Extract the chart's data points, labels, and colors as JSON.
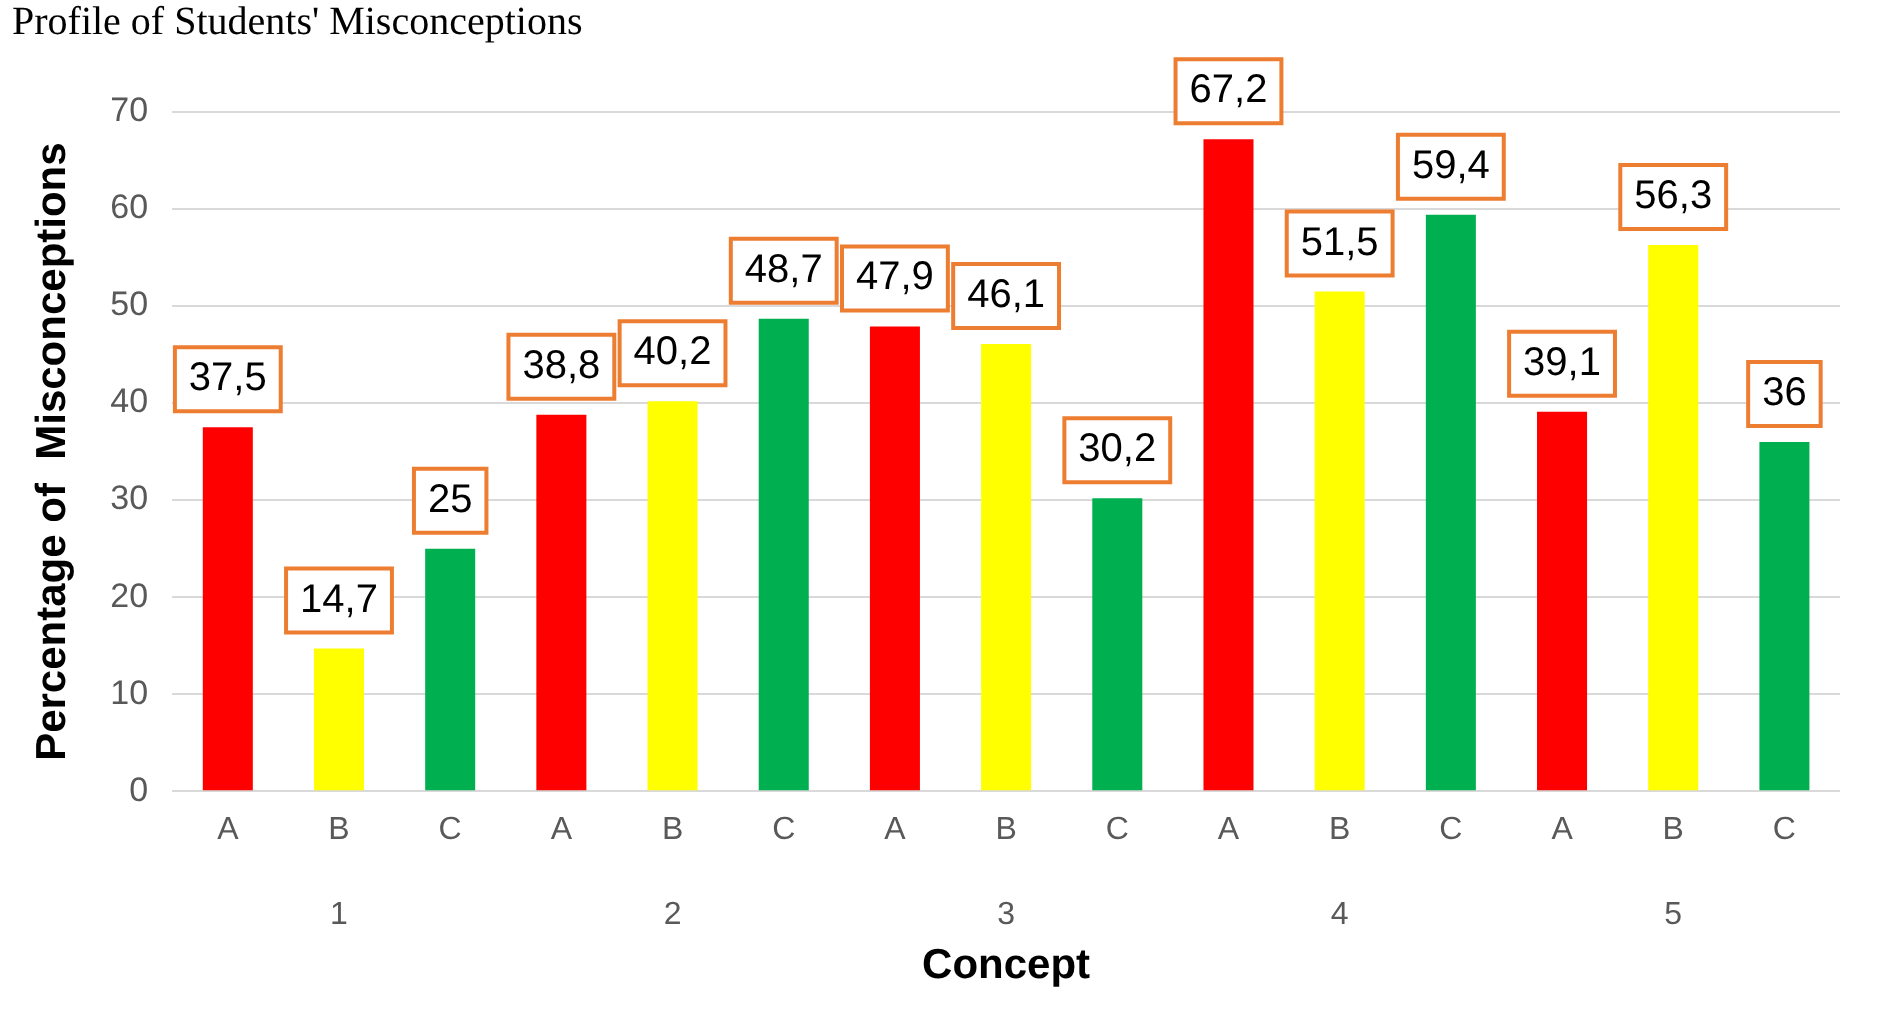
{
  "chart_data": {
    "type": "bar",
    "title": "Profile of Students' Misconceptions",
    "xlabel": "Concept",
    "ylabel": "Percentage of  Misconceptions",
    "categories": [
      "A",
      "B",
      "C",
      "A",
      "B",
      "C",
      "A",
      "B",
      "C",
      "A",
      "B",
      "C",
      "A",
      "B",
      "C"
    ],
    "values": [
      37.5,
      14.7,
      25,
      38.8,
      40.2,
      48.7,
      47.9,
      46.1,
      30.2,
      67.2,
      51.5,
      59.4,
      39.1,
      56.3,
      36
    ],
    "colors": [
      "#ff0000",
      "#ffff00",
      "#00b050",
      "#ff0000",
      "#ffff00",
      "#00b050",
      "#ff0000",
      "#ffff00",
      "#00b050",
      "#ff0000",
      "#ffff00",
      "#00b050",
      "#ff0000",
      "#ffff00",
      "#00b050"
    ],
    "value_labels": [
      "37,5",
      "14,7",
      "25",
      "38,8",
      "40,2",
      "48,7",
      "47,9",
      "46,1",
      "30,2",
      "67,2",
      "51,5",
      "59,4",
      "39,1",
      "56,3",
      "36"
    ],
    "annotations": [
      "1",
      "2",
      "3",
      "4",
      "5"
    ],
    "ylim": [
      0,
      70
    ],
    "yticks": [
      0,
      10,
      20,
      30,
      40,
      50,
      60,
      70
    ],
    "grid": "y",
    "legend": false
  }
}
